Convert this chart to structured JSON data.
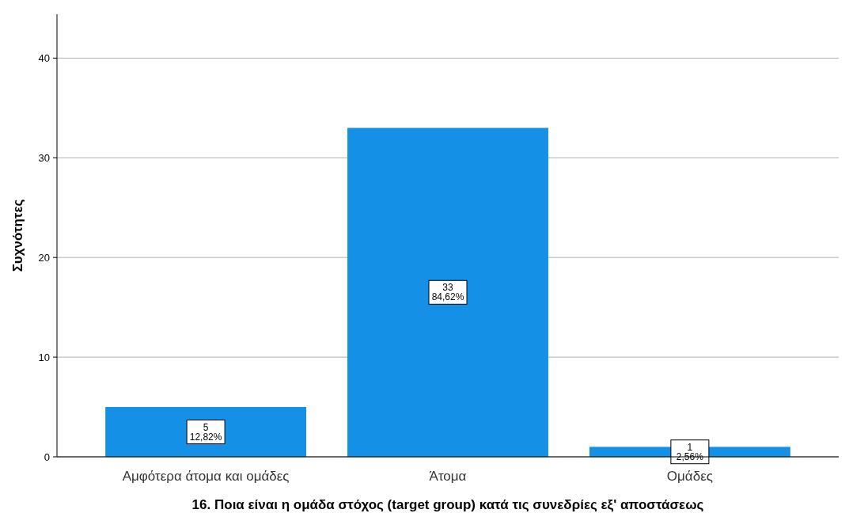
{
  "chart_data": {
    "type": "bar",
    "xlabel": "16. Ποια είναι η ομάδα στόχος (target group) κατά τις συνεδρίες εξ' αποστάσεως",
    "ylabel": "Συχνότητες",
    "categories": [
      "Αμφότερα άτομα και ομάδες",
      "Άτομα",
      "Ομάδες"
    ],
    "values": [
      5,
      33,
      1
    ],
    "color": "#1490e6",
    "value_labels": [
      "5\n12,82%",
      "33\n84,62%",
      "1\n2,56%"
    ],
    "ylim": [
      0,
      44.4
    ],
    "yticks": [
      0,
      10,
      20,
      30,
      40
    ],
    "grid": "y"
  }
}
